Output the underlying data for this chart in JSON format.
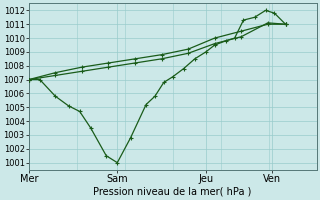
{
  "xlabel": "Pression niveau de la mer( hPa )",
  "background_color": "#cce8e8",
  "line_color": "#1a5c1a",
  "grid_color": "#99cccc",
  "vline_color": "#336666",
  "ylim": [
    1000.5,
    1012.5
  ],
  "yticks": [
    1001,
    1002,
    1003,
    1004,
    1005,
    1006,
    1007,
    1008,
    1009,
    1010,
    1011,
    1012
  ],
  "day_labels": [
    "Mer",
    "Sam",
    "Jeu",
    "Ven"
  ],
  "day_positions": [
    0.0,
    2.0,
    4.0,
    5.5
  ],
  "xlim": [
    0.0,
    6.5
  ],
  "line1_x": [
    0.0,
    0.25,
    0.6,
    0.9,
    1.15,
    1.4,
    1.75,
    2.0,
    2.3,
    2.65,
    2.85,
    3.05,
    3.25,
    3.5,
    3.75,
    4.0,
    4.2,
    4.45,
    4.65,
    4.85,
    5.1,
    5.35,
    5.55,
    5.8
  ],
  "line1_y": [
    1007.0,
    1007.0,
    1005.8,
    1005.1,
    1004.7,
    1003.5,
    1001.5,
    1001.0,
    1002.8,
    1005.2,
    1005.8,
    1006.8,
    1007.2,
    1007.8,
    1008.5,
    1009.0,
    1009.5,
    1009.8,
    1010.0,
    1011.3,
    1011.5,
    1012.0,
    1011.8,
    1011.0
  ],
  "line2_x": [
    0.0,
    0.6,
    1.2,
    1.8,
    2.4,
    3.0,
    3.6,
    4.2,
    4.8,
    5.4,
    5.8
  ],
  "line2_y": [
    1007.0,
    1007.5,
    1007.9,
    1008.2,
    1008.5,
    1008.8,
    1009.2,
    1010.0,
    1010.5,
    1011.0,
    1011.0
  ],
  "line3_x": [
    0.0,
    0.6,
    1.2,
    1.8,
    2.4,
    3.0,
    3.6,
    4.2,
    4.8,
    5.4,
    5.8
  ],
  "line3_y": [
    1007.0,
    1007.3,
    1007.6,
    1007.9,
    1008.2,
    1008.5,
    1008.9,
    1009.6,
    1010.1,
    1011.1,
    1011.0
  ],
  "marker": "+",
  "markersize": 3,
  "linewidth": 0.9,
  "ylabel_fontsize": 6,
  "xlabel_fontsize": 7,
  "xtick_fontsize": 7
}
